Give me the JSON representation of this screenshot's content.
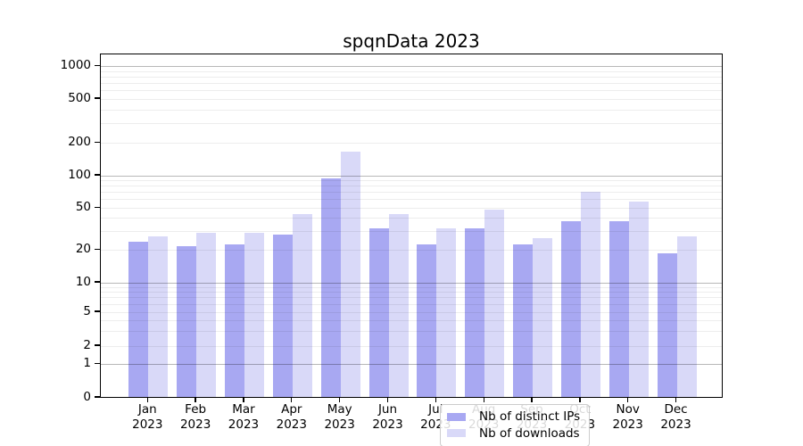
{
  "title": "spqnData 2023",
  "chart_data": {
    "type": "bar",
    "title": "spqnData 2023",
    "categories": [
      "Jan",
      "Feb",
      "Mar",
      "Apr",
      "May",
      "Jun",
      "Jul",
      "Aug",
      "Sep",
      "Oct",
      "Nov",
      "Dec"
    ],
    "category_year": "2023",
    "series": [
      {
        "name": "Nb of distinct IPs",
        "color": "#a8a8f2",
        "values": [
          23,
          21,
          22,
          27,
          91,
          31,
          22,
          31,
          22,
          36,
          36,
          18
        ]
      },
      {
        "name": "Nb of downloads",
        "color": "#d9d9f8",
        "values": [
          26,
          28,
          28,
          42,
          162,
          42,
          31,
          47,
          25,
          68,
          55,
          26
        ]
      }
    ],
    "yscale": "symlog",
    "ylim": [
      0,
      1265
    ],
    "yticks": [
      0,
      1,
      2,
      5,
      10,
      20,
      50,
      100,
      200,
      500,
      1000
    ],
    "grid": "horizontal major and minor gridlines",
    "legend_position": "lower center inside plot"
  },
  "colors": {
    "bar_dark": "#a8a8f2",
    "bar_light": "#d9d9f8",
    "axis": "#000000",
    "grid_major": "rgba(0,0,0,0.28)",
    "grid_minor": "rgba(0,0,0,0.07)",
    "legend_bg": "rgba(255,255,255,0.85)",
    "legend_border": "#cccccc"
  }
}
